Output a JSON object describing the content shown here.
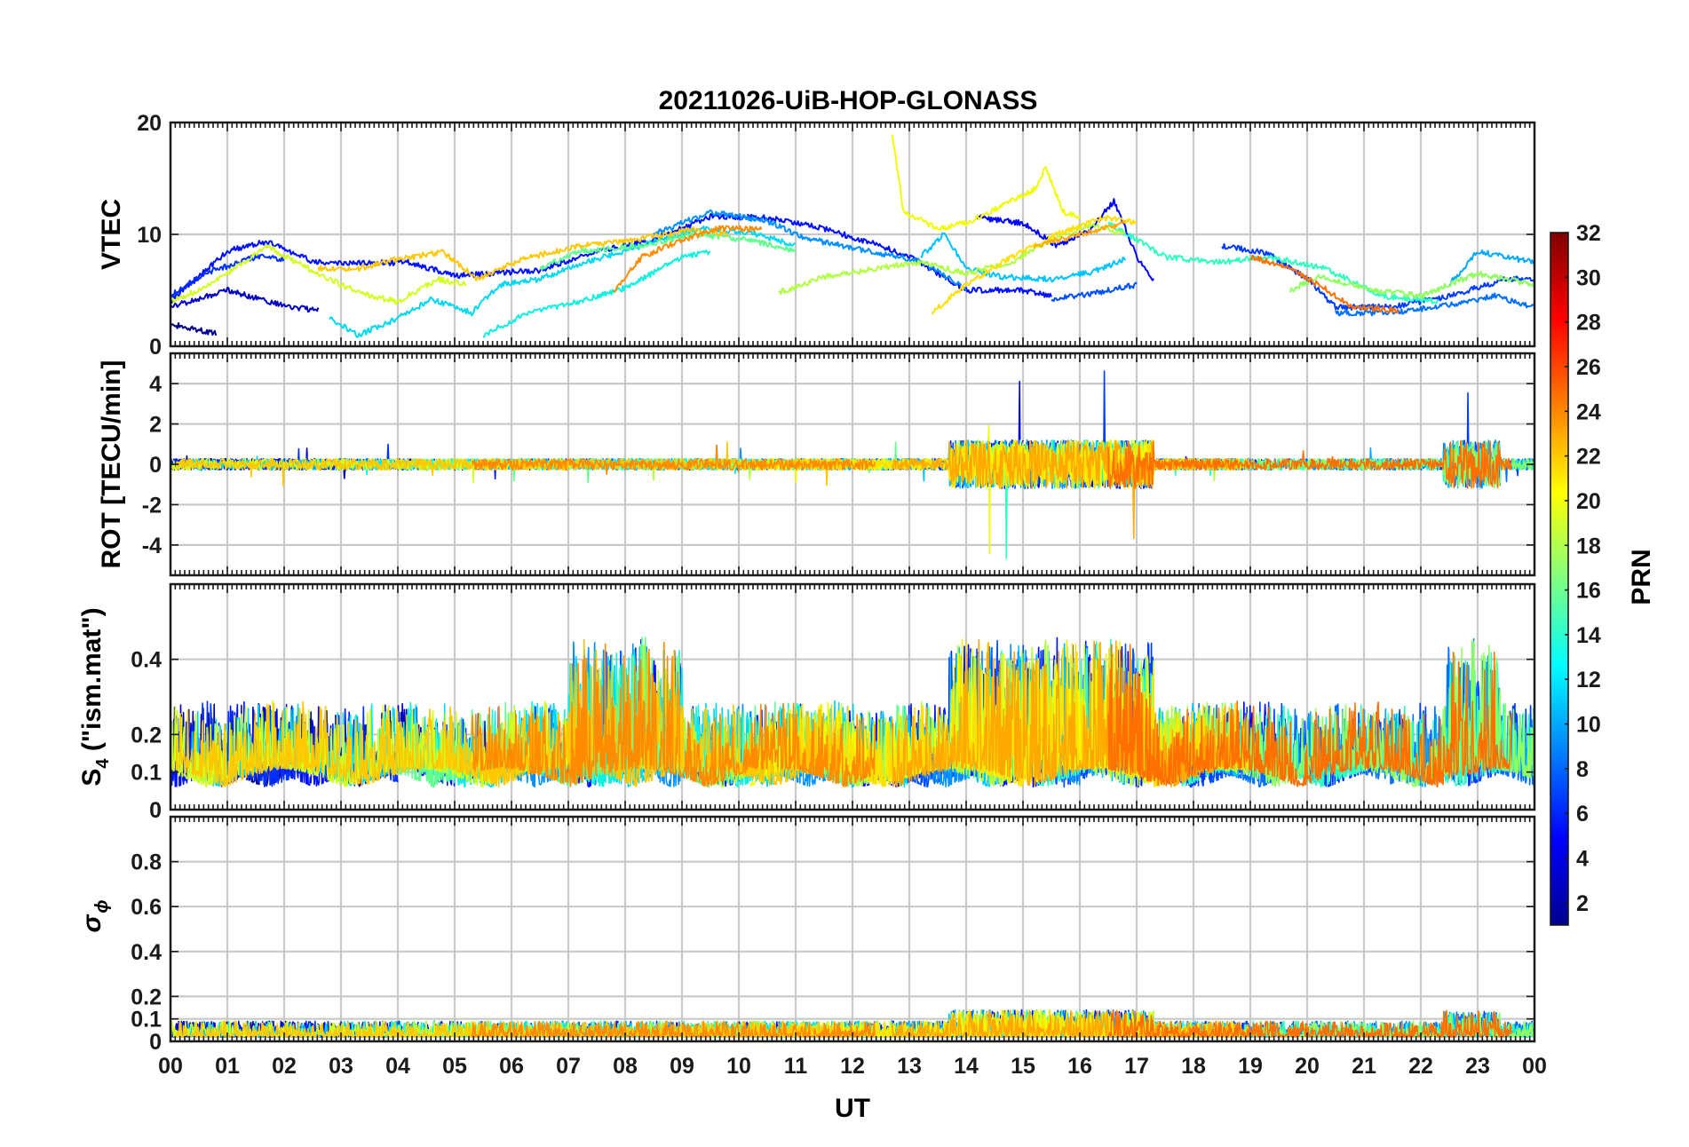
{
  "chart_data": {
    "type": "line",
    "title": "20211026-UiB-HOP-GLONASS",
    "xlabel": "UT",
    "xlim": [
      0,
      24
    ],
    "x_tick_labels": [
      "00",
      "01",
      "02",
      "03",
      "04",
      "05",
      "06",
      "07",
      "08",
      "09",
      "10",
      "11",
      "12",
      "13",
      "14",
      "15",
      "16",
      "17",
      "18",
      "19",
      "20",
      "21",
      "22",
      "23",
      "00"
    ],
    "panels": [
      {
        "id": "vtec",
        "ylabel": "VTEC",
        "ylim": [
          0,
          20
        ],
        "yticks": [
          0,
          10,
          20
        ],
        "ytick_labels": [
          "0",
          "10",
          "20"
        ]
      },
      {
        "id": "rot",
        "ylabel": "ROT [TECU/min]",
        "ylim": [
          -5.5,
          5.5
        ],
        "yticks": [
          -4,
          -2,
          0,
          2,
          4
        ],
        "ytick_labels": [
          "-4",
          "-2",
          "0",
          "2",
          "4"
        ]
      },
      {
        "id": "s4",
        "ylabel_main": "S",
        "ylabel_sub": "4",
        "ylabel_rest": " (\"ism.mat\")",
        "ylim": [
          0,
          0.6
        ],
        "yticks": [
          0,
          0.1,
          0.2,
          0.4
        ],
        "ytick_labels": [
          "0",
          "0.1",
          "0.2",
          "0.4"
        ]
      },
      {
        "id": "sigphi",
        "ylabel_main": "σ",
        "ylabel_sub": "ϕ",
        "ylim": [
          0,
          1
        ],
        "yticks": [
          0,
          0.1,
          0.2,
          0.4,
          0.6,
          0.8
        ],
        "ytick_labels": [
          "0",
          "0.1",
          "0.2",
          "0.4",
          "0.6",
          "0.8"
        ]
      }
    ],
    "colorbar": {
      "label": "PRN",
      "range": [
        1,
        32
      ],
      "ticks": [
        2,
        4,
        6,
        8,
        10,
        12,
        14,
        16,
        18,
        20,
        22,
        24,
        26,
        28,
        30,
        32
      ],
      "tick_labels": [
        "2",
        "4",
        "6",
        "8",
        "10",
        "12",
        "14",
        "16",
        "18",
        "20",
        "22",
        "24",
        "26",
        "28",
        "30",
        "32"
      ],
      "colormap": "jet"
    },
    "series": [
      {
        "prn": 1,
        "color": "#00008f",
        "vtec_points": [
          [
            0,
            2.0
          ],
          [
            0.4,
            1.5
          ],
          [
            0.8,
            1.2
          ]
        ]
      },
      {
        "prn": 2,
        "color": "#0000c0",
        "vtec_points": [
          [
            0,
            3.5
          ],
          [
            1.0,
            5.0
          ],
          [
            2.0,
            3.6
          ],
          [
            2.6,
            3.2
          ]
        ]
      },
      {
        "prn": 3,
        "color": "#0010ff",
        "vtec_points": [
          [
            0,
            4.0
          ],
          [
            1.0,
            8.5
          ],
          [
            1.7,
            9.4
          ],
          [
            2.5,
            7.6
          ],
          [
            3.3,
            7.4
          ],
          [
            4.2,
            7.5
          ],
          [
            5.0,
            6.3
          ],
          [
            6.5,
            6.8
          ],
          [
            7.5,
            8.5
          ],
          [
            8.5,
            9.5
          ],
          [
            9.5,
            11.6
          ],
          [
            10.5,
            11.5
          ],
          [
            11.5,
            10.5
          ],
          [
            12.5,
            9.0
          ],
          [
            13.0,
            8.0
          ],
          [
            14.0,
            5.0
          ],
          [
            15.0,
            5.0
          ],
          [
            15.5,
            4.5
          ]
        ]
      },
      {
        "prn": 4,
        "color": "#0030ff",
        "vtec_points": [
          [
            0,
            4.5
          ],
          [
            0.6,
            6.5
          ],
          [
            1.5,
            8.0
          ],
          [
            2.0,
            7.8
          ]
        ]
      },
      {
        "prn": 5,
        "color": "#0000ff",
        "vtec_points": [
          [
            14.2,
            11.5
          ],
          [
            15.0,
            11.0
          ],
          [
            15.6,
            9.0
          ],
          [
            16.2,
            10.5
          ],
          [
            16.6,
            13.0
          ],
          [
            17.0,
            8.0
          ],
          [
            17.3,
            6.0
          ]
        ]
      },
      {
        "prn": 6,
        "color": "#0050ff",
        "vtec_points": [
          [
            15.5,
            4.2
          ],
          [
            16.0,
            4.5
          ],
          [
            17.0,
            5.5
          ]
        ]
      },
      {
        "prn": 7,
        "color": "#003cff",
        "vtec_points": [
          [
            18.5,
            9.0
          ],
          [
            19.3,
            8.3
          ],
          [
            20.0,
            6.0
          ],
          [
            20.5,
            3.5
          ],
          [
            21.5,
            3.5
          ],
          [
            22.5,
            4.5
          ],
          [
            23.5,
            6.0
          ],
          [
            24,
            6.0
          ]
        ]
      },
      {
        "prn": 8,
        "color": "#0070ff",
        "vtec_points": [
          [
            20.5,
            3.0
          ],
          [
            21.5,
            3.0
          ],
          [
            22.3,
            3.5
          ],
          [
            23.3,
            4.5
          ],
          [
            24,
            3.5
          ]
        ]
      },
      {
        "prn": 9,
        "color": "#0090ff",
        "vtec_points": [
          [
            8.5,
            10.0
          ],
          [
            9.5,
            12.0
          ],
          [
            10.5,
            11.2
          ],
          [
            11.2,
            9.6
          ],
          [
            12.2,
            8.6
          ],
          [
            13.2,
            7.6
          ],
          [
            14.0,
            5.2
          ]
        ]
      },
      {
        "prn": 10,
        "color": "#00a8ff",
        "vtec_points": [
          [
            22.5,
            5.5
          ],
          [
            23.0,
            8.5
          ],
          [
            24,
            7.5
          ]
        ]
      },
      {
        "prn": 11,
        "color": "#00c4ff",
        "vtec_points": [
          [
            13.2,
            8.0
          ],
          [
            13.6,
            10.0
          ],
          [
            14.0,
            7.0
          ],
          [
            14.6,
            6.2
          ],
          [
            15.5,
            6.0
          ],
          [
            16.2,
            6.6
          ],
          [
            16.8,
            7.8
          ]
        ]
      },
      {
        "prn": 12,
        "color": "#00d8f0",
        "vtec_points": [
          [
            2.8,
            2.5
          ],
          [
            3.3,
            1.0
          ],
          [
            4.0,
            2.5
          ],
          [
            4.6,
            4.2
          ],
          [
            5.3,
            3.0
          ],
          [
            5.8,
            5.5
          ],
          [
            6.5,
            6.0
          ],
          [
            7.3,
            7.5
          ],
          [
            8.3,
            9.0
          ],
          [
            9.3,
            10.5
          ],
          [
            10.2,
            10.2
          ],
          [
            11.0,
            9.0
          ]
        ]
      },
      {
        "prn": 13,
        "color": "#10f0e0",
        "vtec_points": [
          [
            5.5,
            1.0
          ],
          [
            6.3,
            3.0
          ],
          [
            7.2,
            4.0
          ],
          [
            8.0,
            5.2
          ],
          [
            9.0,
            8.0
          ],
          [
            9.5,
            8.5
          ]
        ]
      },
      {
        "prn": 14,
        "color": "#30ffc0",
        "vtec_points": [
          [
            16.5,
            11.0
          ],
          [
            17.5,
            8.0
          ],
          [
            18.5,
            7.5
          ],
          [
            19.3,
            8.0
          ],
          [
            20.3,
            7.0
          ],
          [
            21.3,
            4.5
          ],
          [
            22.3,
            4.0
          ]
        ]
      },
      {
        "prn": 15,
        "color": "#60ff90",
        "vtec_points": [
          [
            6.5,
            7.0
          ],
          [
            7.2,
            8.5
          ],
          [
            8.3,
            9.0
          ],
          [
            9.2,
            10.0
          ],
          [
            10.2,
            9.5
          ],
          [
            11.0,
            8.5
          ]
        ]
      },
      {
        "prn": 16,
        "color": "#90ff60",
        "vtec_points": [
          [
            19.7,
            5.0
          ],
          [
            20.2,
            6.2
          ],
          [
            21.2,
            5.0
          ],
          [
            22.0,
            4.5
          ],
          [
            23.0,
            6.5
          ],
          [
            24,
            5.5
          ]
        ]
      },
      {
        "prn": 17,
        "color": "#b0ff40",
        "vtec_points": [
          [
            10.7,
            4.8
          ],
          [
            11.5,
            6.2
          ],
          [
            12.5,
            7.0
          ],
          [
            13.2,
            7.5
          ],
          [
            14.0,
            6.5
          ],
          [
            14.8,
            7.5
          ],
          [
            15.5,
            9.5
          ],
          [
            16.2,
            10.8
          ],
          [
            16.8,
            10.0
          ]
        ]
      },
      {
        "prn": 18,
        "color": "#d0ff20",
        "vtec_points": [
          [
            0,
            4.0
          ],
          [
            0.5,
            5.0
          ],
          [
            1.3,
            7.5
          ],
          [
            1.7,
            9.0
          ],
          [
            2.2,
            7.5
          ],
          [
            3.0,
            5.5
          ],
          [
            3.5,
            4.5
          ],
          [
            4.0,
            4.0
          ],
          [
            4.7,
            6.0
          ],
          [
            5.2,
            5.5
          ]
        ]
      },
      {
        "prn": 19,
        "color": "#f0ff00",
        "vtec_points": [
          [
            12.7,
            19.0
          ],
          [
            12.9,
            12.0
          ],
          [
            13.5,
            10.5
          ],
          [
            14.0,
            11.0
          ],
          [
            15.2,
            14.0
          ],
          [
            15.4,
            16.0
          ],
          [
            15.7,
            12.0
          ],
          [
            16.0,
            11.5
          ]
        ]
      },
      {
        "prn": 20,
        "color": "#ffe000",
        "vtec_points": [
          [
            13.4,
            3.0
          ],
          [
            14.0,
            5.5
          ],
          [
            14.8,
            8.0
          ],
          [
            15.6,
            10.0
          ],
          [
            16.4,
            11.5
          ],
          [
            17.0,
            11.0
          ]
        ]
      },
      {
        "prn": 21,
        "color": "#ffc800",
        "vtec_points": [
          [
            2.6,
            7.0
          ],
          [
            3.2,
            6.8
          ],
          [
            4.0,
            7.8
          ],
          [
            4.8,
            8.4
          ],
          [
            5.4,
            6.0
          ],
          [
            6.2,
            7.8
          ],
          [
            7.2,
            9.0
          ],
          [
            8.2,
            9.5
          ],
          [
            9.2,
            10.5
          ],
          [
            9.8,
            10.0
          ]
        ]
      },
      {
        "prn": 22,
        "color": "#ffa800",
        "vtec_points": [
          [
            15.2,
            9.0
          ],
          [
            16.0,
            10.0
          ],
          [
            16.8,
            11.0
          ]
        ]
      },
      {
        "prn": 23,
        "color": "#ff8c00",
        "vtec_points": [
          [
            7.8,
            5.0
          ],
          [
            8.3,
            8.0
          ],
          [
            9.0,
            9.5
          ],
          [
            9.6,
            10.5
          ],
          [
            10.4,
            10.5
          ]
        ]
      },
      {
        "prn": 24,
        "color": "#ff7000",
        "vtec_points": [
          [
            19.0,
            8.0
          ],
          [
            19.7,
            7.0
          ],
          [
            20.2,
            5.5
          ],
          [
            20.8,
            3.5
          ],
          [
            21.6,
            3.2
          ]
        ]
      }
    ]
  }
}
